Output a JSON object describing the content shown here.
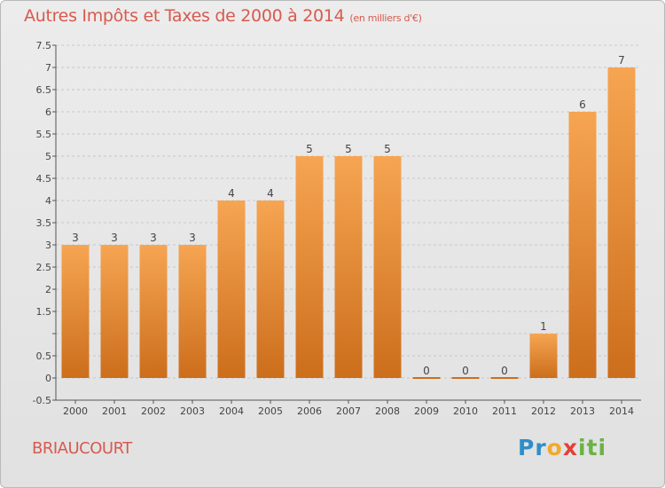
{
  "title": "Autres Impôts et Taxes de 2000 à 2014",
  "subtitle": "(en milliers d'€)",
  "location": "BRIAUCOURT",
  "brand": {
    "letters": [
      "P",
      "r",
      "o",
      "x",
      "i",
      "t",
      "i"
    ],
    "colors": [
      "#2e8ec9",
      "#2e8ec9",
      "#f2a92b",
      "#e2403a",
      "#6ab345",
      "#6ab345",
      "#6ab345"
    ]
  },
  "colors": {
    "bar_top": "#f6a552",
    "bar_bottom": "#cc6e1c",
    "title": "#d85a4e",
    "grid": "#c8c8c8"
  },
  "chart_data": {
    "type": "bar",
    "title": "Autres Impôts et Taxes de 2000 à 2014",
    "subtitle": "(en milliers d'€)",
    "categories": [
      "2000",
      "2001",
      "2002",
      "2003",
      "2004",
      "2005",
      "2006",
      "2007",
      "2008",
      "2009",
      "2010",
      "2011",
      "2012",
      "2013",
      "2014"
    ],
    "values": [
      3,
      3,
      3,
      3,
      4,
      4,
      5,
      5,
      5,
      0,
      0,
      0,
      1,
      6,
      7
    ],
    "data_labels": [
      "3",
      "3",
      "3",
      "3",
      "4",
      "4",
      "5",
      "5",
      "5",
      "0",
      "0",
      "0",
      "1",
      "6",
      "7"
    ],
    "ylim": [
      -0.5,
      7.5
    ],
    "yticks": [
      -0.5,
      0,
      0.5,
      1,
      1.5,
      2,
      2.5,
      3,
      3.5,
      4,
      4.5,
      5,
      5.5,
      6,
      6.5,
      7,
      7.5
    ],
    "ytick_labels": [
      "-0.5",
      "0",
      "0.5",
      "",
      "1.5",
      "2",
      "2.5",
      "3",
      "3.5",
      "4",
      "4.5",
      "5",
      "5.5",
      "6",
      "6.5",
      "7",
      "7.5"
    ],
    "grid": "horizontal dashed",
    "legend": "none"
  }
}
